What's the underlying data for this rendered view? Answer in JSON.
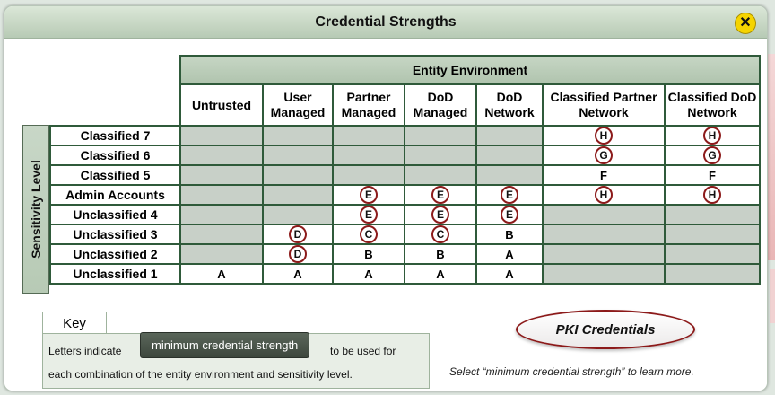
{
  "window": {
    "title": "Credential Strengths",
    "close_label": "✕"
  },
  "side_label": "Sensitivity Level",
  "env_header": "Entity Environment",
  "columns": [
    "Untrusted",
    "User Managed",
    "Partner Managed",
    "DoD Managed",
    "DoD Network",
    "Classified Partner Network",
    "Classified DoD Network"
  ],
  "rows": [
    {
      "label": "Classified 7",
      "cells": [
        "",
        "",
        "",
        "",
        "",
        "H*",
        "H*"
      ],
      "gray": [
        1,
        1,
        1,
        1,
        1,
        0,
        0
      ]
    },
    {
      "label": "Classified 6",
      "cells": [
        "",
        "",
        "",
        "",
        "",
        "G*",
        "G*"
      ],
      "gray": [
        1,
        1,
        1,
        1,
        1,
        0,
        0
      ]
    },
    {
      "label": "Classified 5",
      "cells": [
        "",
        "",
        "",
        "",
        "",
        "F",
        "F"
      ],
      "gray": [
        1,
        1,
        1,
        1,
        1,
        0,
        0
      ]
    },
    {
      "label": "Admin Accounts",
      "cells": [
        "",
        "",
        "E*",
        "E*",
        "E*",
        "H*",
        "H*"
      ],
      "gray": [
        1,
        1,
        0,
        0,
        0,
        0,
        0
      ]
    },
    {
      "label": "Unclassified 4",
      "cells": [
        "",
        "",
        "E*",
        "E*",
        "E*",
        "",
        ""
      ],
      "gray": [
        1,
        1,
        0,
        0,
        0,
        1,
        1
      ]
    },
    {
      "label": "Unclassified 3",
      "cells": [
        "",
        "D*",
        "C*",
        "C*",
        "B",
        "",
        ""
      ],
      "gray": [
        1,
        0,
        0,
        0,
        0,
        1,
        1
      ]
    },
    {
      "label": "Unclassified 2",
      "cells": [
        "",
        "D*",
        "B",
        "B",
        "A",
        "",
        ""
      ],
      "gray": [
        1,
        0,
        0,
        0,
        0,
        1,
        1
      ]
    },
    {
      "label": "Unclassified 1",
      "cells": [
        "A",
        "A",
        "A",
        "A",
        "A",
        "",
        ""
      ],
      "gray": [
        0,
        0,
        0,
        0,
        0,
        1,
        1
      ]
    }
  ],
  "key": {
    "tab": "Key",
    "line1_pre": "Letters indicate",
    "button": "minimum credential strength",
    "line1_post": "to be used for",
    "line2": "each combination of the entity environment and sensitivity level."
  },
  "pki_button": "PKI Credentials",
  "hint": "Select “minimum credential strength” to learn more.",
  "colors": {
    "accent_circle": "#8c1a1a",
    "header_green": "#b7cab5",
    "gray_cell": "#c8d0c8",
    "close_yellow": "#f5d400"
  }
}
